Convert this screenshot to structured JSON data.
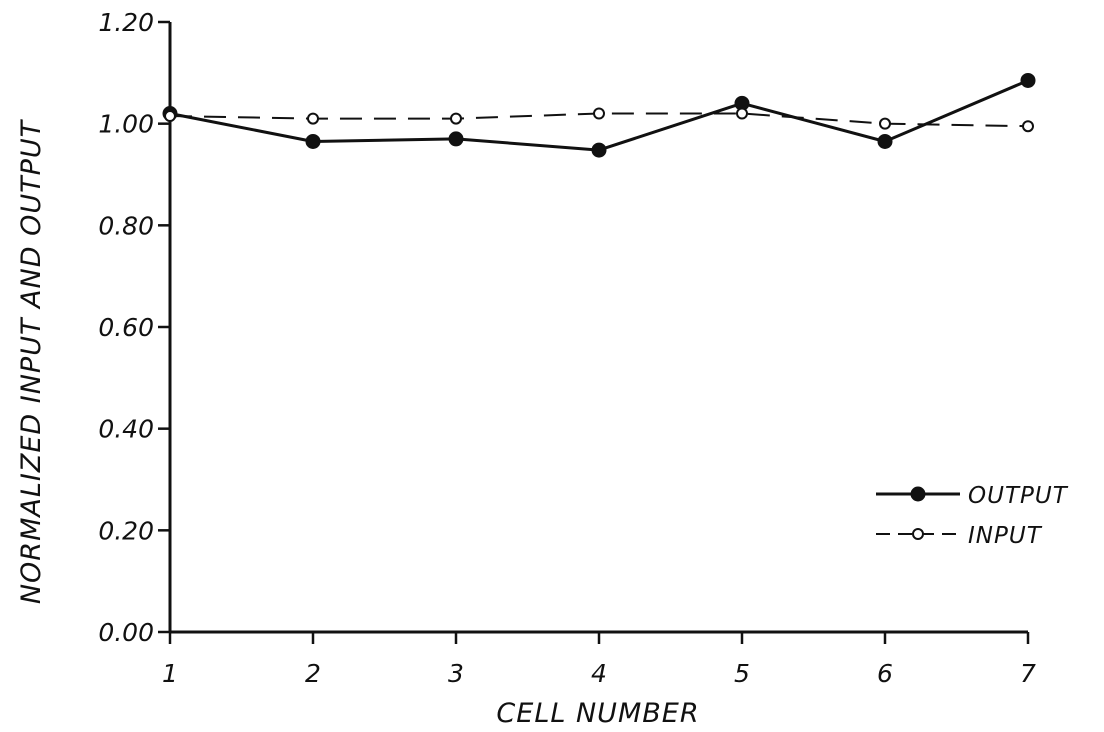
{
  "chart_data": {
    "type": "line",
    "title": "",
    "xlabel": "CELL NUMBER",
    "ylabel": "NORMALIZED INPUT AND OUTPUT",
    "xlim": [
      1,
      7
    ],
    "ylim": [
      0,
      1.2
    ],
    "x_ticks": [
      1,
      2,
      3,
      4,
      5,
      6,
      7
    ],
    "x_tick_labels": [
      "1",
      "2",
      "3",
      "4",
      "5",
      "6",
      "7"
    ],
    "y_ticks": [
      0,
      0.2,
      0.4,
      0.6,
      0.8,
      1.0,
      1.2
    ],
    "y_tick_labels": [
      "0.00",
      "0.20",
      "0.40",
      "0.60",
      "0.80",
      "1.00",
      "1.20"
    ],
    "grid": false,
    "legend_position": "bottom-right",
    "series": [
      {
        "name": "OUTPUT",
        "style": "solid",
        "marker": "filled-circle",
        "color": "#111111",
        "x": [
          1,
          2,
          3,
          4,
          5,
          6,
          7
        ],
        "values": [
          1.02,
          0.965,
          0.97,
          0.948,
          1.04,
          0.965,
          1.085
        ]
      },
      {
        "name": "INPUT",
        "style": "dashed",
        "marker": "open-circle",
        "color": "#111111",
        "x": [
          1,
          2,
          3,
          4,
          5,
          6,
          7
        ],
        "values": [
          1.015,
          1.01,
          1.01,
          1.02,
          1.02,
          1.0,
          0.995
        ]
      }
    ]
  }
}
